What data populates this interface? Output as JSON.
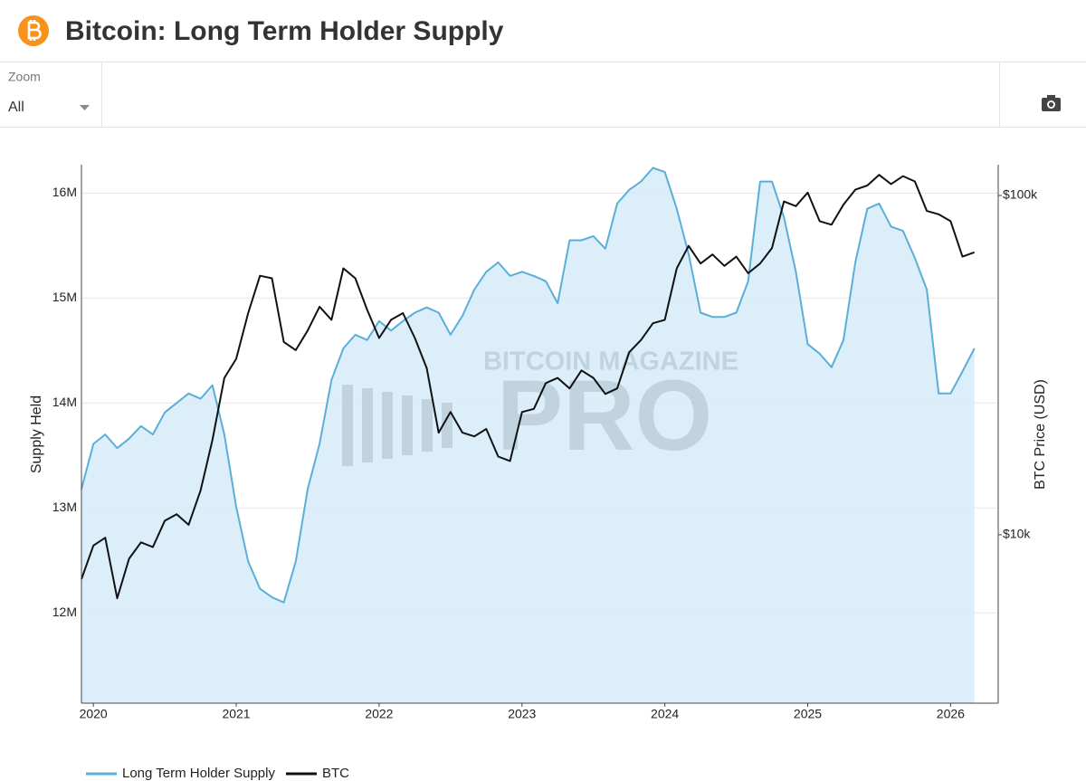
{
  "header": {
    "title": "Bitcoin: Long Term Holder Supply"
  },
  "toolbar": {
    "zoom_label": "Zoom",
    "zoom_value": "All"
  },
  "watermark": {
    "line1": "BITCOIN MAGAZINE",
    "line2": "PRO"
  },
  "chart_data": {
    "type": "line",
    "y_label": "Supply Held",
    "y2_label": "BTC Price (USD)",
    "x": [
      "2019-12",
      "2020-01",
      "2020-02",
      "2020-03",
      "2020-04",
      "2020-05",
      "2020-06",
      "2020-07",
      "2020-08",
      "2020-09",
      "2020-10",
      "2020-11",
      "2020-12",
      "2021-01",
      "2021-02",
      "2021-03",
      "2021-04",
      "2021-05",
      "2021-06",
      "2021-07",
      "2021-08",
      "2021-09",
      "2021-10",
      "2021-11",
      "2021-12",
      "2022-01",
      "2022-02",
      "2022-03",
      "2022-04",
      "2022-05",
      "2022-06",
      "2022-07",
      "2022-08",
      "2022-09",
      "2022-10",
      "2022-11",
      "2022-12",
      "2023-01",
      "2023-02",
      "2023-03",
      "2023-04",
      "2023-05",
      "2023-06",
      "2023-07",
      "2023-08",
      "2023-09",
      "2023-10",
      "2023-11",
      "2023-12",
      "2024-01",
      "2024-02",
      "2024-03",
      "2024-04",
      "2024-05",
      "2024-06",
      "2024-07",
      "2024-08",
      "2024-09",
      "2024-10",
      "2024-11",
      "2024-12",
      "2025-01",
      "2025-02",
      "2025-03",
      "2025-04",
      "2025-05",
      "2025-06",
      "2025-07",
      "2025-08",
      "2025-09",
      "2025-10",
      "2025-11",
      "2025-12",
      "2026-01",
      "2026-02",
      "2026-03"
    ],
    "series": [
      {
        "name": "Long Term Holder Supply",
        "color": "#5aafd8",
        "fill": "#dbeefa",
        "axis": "y",
        "values": [
          13180000,
          13610000,
          13700000,
          13570000,
          13660000,
          13780000,
          13700000,
          13910000,
          14000000,
          14090000,
          14040000,
          14170000,
          13700000,
          13010000,
          12490000,
          12230000,
          12150000,
          12100000,
          12490000,
          13180000,
          13610000,
          14220000,
          14520000,
          14650000,
          14600000,
          14780000,
          14690000,
          14780000,
          14860000,
          14910000,
          14860000,
          14650000,
          14830000,
          15080000,
          15250000,
          15340000,
          15210000,
          15250000,
          15210000,
          15160000,
          14950000,
          15550000,
          15550000,
          15590000,
          15470000,
          15900000,
          16030000,
          16110000,
          16240000,
          16200000,
          15850000,
          15420000,
          14860000,
          14820000,
          14820000,
          14860000,
          15160000,
          16110000,
          16110000,
          15770000,
          15250000,
          14560000,
          14470000,
          14340000,
          14600000,
          15340000,
          15850000,
          15900000,
          15680000,
          15640000,
          15380000,
          15080000,
          14090000,
          14090000,
          14300000,
          14520000
        ]
      },
      {
        "name": "BTC",
        "color": "#111111",
        "axis": "y2",
        "values": [
          7400,
          9300,
          9800,
          6500,
          8500,
          9500,
          9200,
          11000,
          11500,
          10700,
          13500,
          19000,
          29000,
          33000,
          45000,
          58000,
          57000,
          37000,
          35000,
          40000,
          47000,
          43000,
          61000,
          57000,
          46000,
          38000,
          43000,
          45000,
          38000,
          31000,
          20000,
          23000,
          20000,
          19500,
          20500,
          17000,
          16500,
          23000,
          23500,
          28000,
          29000,
          27000,
          30500,
          29000,
          26000,
          27000,
          34500,
          37500,
          42000,
          43000,
          61000,
          71000,
          63000,
          67000,
          62000,
          66000,
          59000,
          63000,
          70000,
          96000,
          93000,
          102000,
          84000,
          82000,
          94000,
          104000,
          107000,
          115000,
          108000,
          114000,
          110000,
          90000,
          88000,
          84000,
          66000,
          68000
        ]
      }
    ],
    "xlim": [
      "2019-12",
      "2026-05"
    ],
    "xticks": [
      "2020",
      "2021",
      "2022",
      "2023",
      "2024",
      "2025",
      "2026"
    ],
    "ylim": [
      11140000,
      16270000
    ],
    "yticks": [
      {
        "value": 12000000,
        "label": "12M"
      },
      {
        "value": 13000000,
        "label": "13M"
      },
      {
        "value": 14000000,
        "label": "14M"
      },
      {
        "value": 15000000,
        "label": "15M"
      },
      {
        "value": 16000000,
        "label": "16M"
      }
    ],
    "y2lim": [
      3190,
      123200
    ],
    "y2log": true,
    "y2ticks": [
      {
        "value": 10000,
        "label": "$10k"
      },
      {
        "value": 100000,
        "label": "$100k"
      }
    ],
    "grid": true,
    "legend": "bottom-left"
  }
}
